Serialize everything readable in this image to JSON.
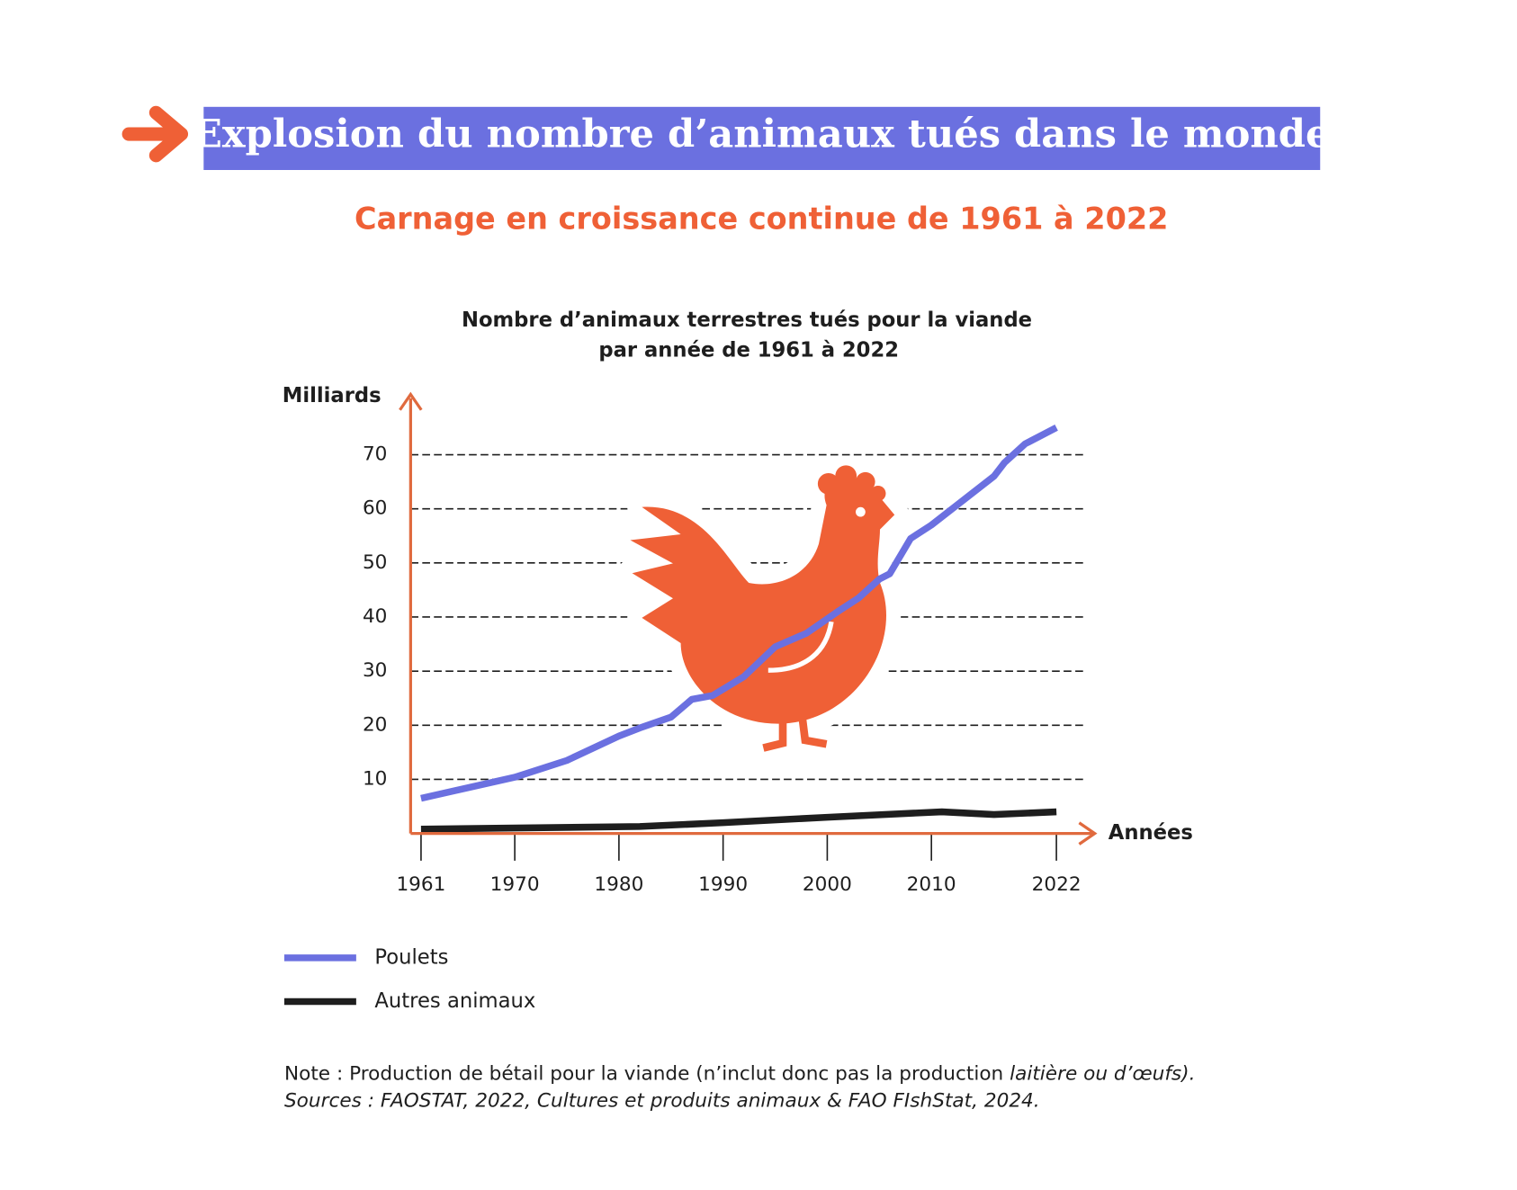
{
  "header": {
    "title": "Explosion du nombre d’animaux tués dans le monde",
    "subtitle": "Carnage en croissance continue de 1961 à 2022"
  },
  "chart_data": {
    "type": "line",
    "title": [
      "Nombre d’animaux terrestres tués pour la viande",
      "par année de 1961 à 2022"
    ],
    "y_label": "Milliards",
    "x_label": "Années",
    "xlim": [
      1960,
      2024
    ],
    "xticks": [
      1961,
      1970,
      1980,
      1990,
      2000,
      2010,
      2022
    ],
    "ylim": [
      0,
      78
    ],
    "yticks": [
      10,
      20,
      30,
      40,
      50,
      60,
      70
    ],
    "grid": true,
    "series": [
      {
        "name": "Poulets",
        "color": "#6b70e0",
        "x": [
          1961,
          1970,
          1975,
          1980,
          1982,
          1985,
          1987,
          1989,
          1992,
          1995,
          1998,
          2001,
          2003,
          2005,
          2006,
          2008,
          2010,
          2013,
          2016,
          2017,
          2019,
          2022
        ],
        "values": [
          6.5,
          10.4,
          13.5,
          18,
          19.5,
          21.5,
          24.8,
          25.5,
          29,
          34.5,
          37,
          41,
          43.5,
          47,
          48,
          54.5,
          57,
          61.5,
          66,
          68.5,
          72,
          75
        ]
      },
      {
        "name": "Autres animaux",
        "color": "#1e1e1e",
        "x": [
          1961,
          1970,
          1982,
          1990,
          2000,
          2011,
          2016,
          2022
        ],
        "values": [
          0.8,
          1,
          1.3,
          2,
          3,
          4,
          3.5,
          4
        ]
      }
    ]
  },
  "note": {
    "line1": "Note : Production de bétail pour la viande (n’inclut donc pas la production ",
    "line1_italic": "laitière ou d’œufs).",
    "line2": "Sources : FAOSTAT, 2022, Cultures et produits animaux & FAO FIshStat, 2024."
  }
}
